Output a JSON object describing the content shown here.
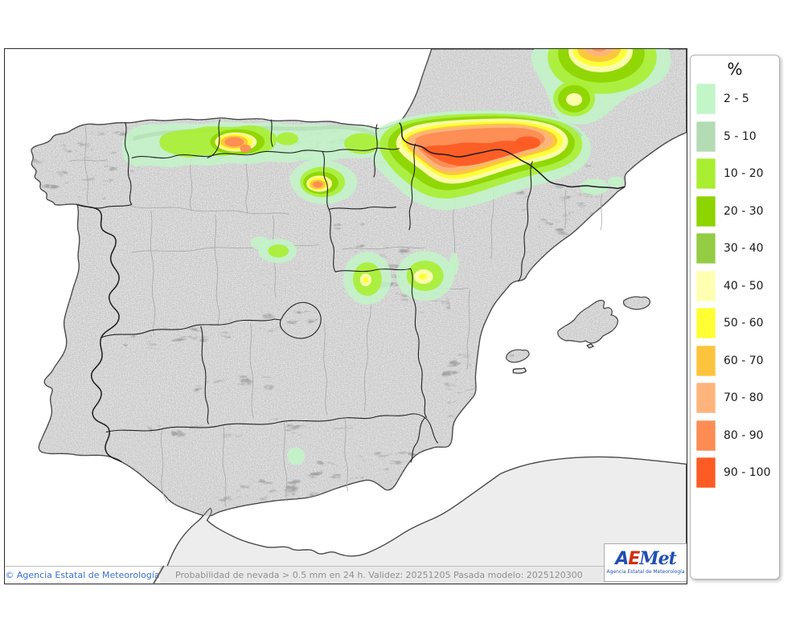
{
  "legend": {
    "title": "%",
    "items": [
      {
        "label": "2 - 5",
        "color": "#c2f5c8"
      },
      {
        "label": "5 - 10",
        "color": "#b4dcb4"
      },
      {
        "label": "10 - 20",
        "color": "#aaee32"
      },
      {
        "label": "20 - 30",
        "color": "#8ed400"
      },
      {
        "label": "30 - 40",
        "color": "#94cc44"
      },
      {
        "label": "40 - 50",
        "color": "#ffffb2"
      },
      {
        "label": "50 - 60",
        "color": "#ffff33"
      },
      {
        "label": "60 - 70",
        "color": "#fcc43c"
      },
      {
        "label": "70 - 80",
        "color": "#fcb47c"
      },
      {
        "label": "80 - 90",
        "color": "#fc8c54"
      },
      {
        "label": "90 - 100",
        "color": "#fc5c24"
      }
    ]
  },
  "footer": {
    "copyright": "© Agencia Estatal de Meteorología",
    "info": "Probabilidad de nevada > 0.5 mm en 24 h. Validez: 20251205 Pasada modelo: 2025120300"
  },
  "logo": {
    "a": "A",
    "e": "E",
    "met": "Met",
    "caption": "Agencia Estatal de Meteorología"
  },
  "colors": {
    "sea": "#ffffff",
    "land": "#e9e9e9",
    "land_flat": "#ededed",
    "coast": "#3a3a3a",
    "region_border": "#222222",
    "province_border": "#a8a8a8",
    "p2_5": "#c2f5c8",
    "p5_10": "#b4dcb4",
    "p10_20": "#aaee32",
    "p20_30": "#8ed400",
    "p30_40": "#94cc44",
    "p40_50": "#ffffb2",
    "p50_60": "#ffff33",
    "p60_70": "#fcc43c",
    "p70_80": "#fcb47c",
    "p80_90": "#fc8c54",
    "p90_100": "#fc5c24"
  }
}
